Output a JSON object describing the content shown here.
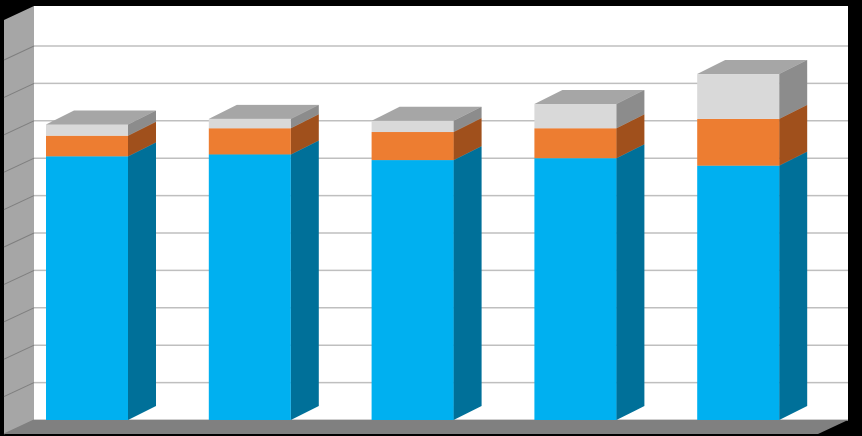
{
  "chart_data": {
    "type": "bar",
    "stacked": true,
    "three_d": true,
    "categories": [
      "",
      "",
      "",
      "",
      ""
    ],
    "ylim": [
      0,
      10
    ],
    "grid": true,
    "legend": "none",
    "series": [
      {
        "values": [
          7.05,
          7.1,
          6.95,
          7.0,
          6.8
        ],
        "color": "#00b0f0",
        "side_color": "#007099"
      },
      {
        "values": [
          0.55,
          0.7,
          0.75,
          0.8,
          1.25
        ],
        "color": "#ed7d31",
        "side_color": "#a0501c"
      },
      {
        "values": [
          0.3,
          0.25,
          0.3,
          0.65,
          1.2
        ],
        "color": "#d9d9d9",
        "side_color": "#8c8c8c"
      }
    ],
    "colors": {
      "background": "#000000",
      "plot_area": "#ffffff",
      "gridline": "#bfbfbf",
      "wall": "#a6a6a6",
      "floor": "#808080",
      "top_face": "#a6a6a6"
    }
  }
}
